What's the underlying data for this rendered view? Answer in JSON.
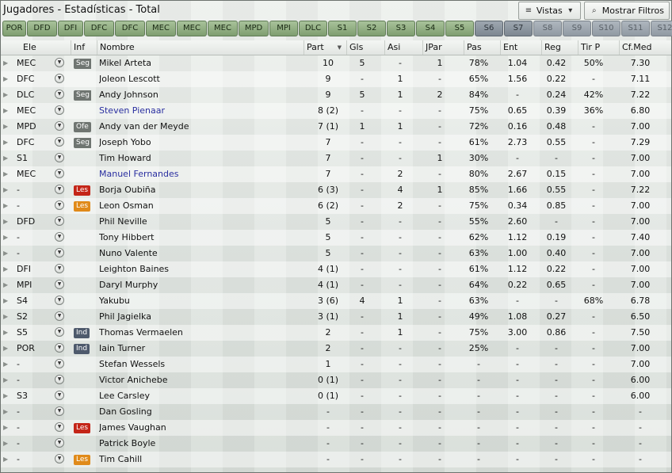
{
  "window": {
    "title": "Jugadores - Estadísticas - Total"
  },
  "toolbar": {
    "views_label": "Vistas",
    "filters_label": "Mostrar Filtros"
  },
  "positions": [
    {
      "label": "POR",
      "state": "on"
    },
    {
      "label": "DFD",
      "state": "on"
    },
    {
      "label": "DFI",
      "state": "on"
    },
    {
      "label": "DFC",
      "state": "on"
    },
    {
      "label": "DFC",
      "state": "on"
    },
    {
      "label": "MEC",
      "state": "on"
    },
    {
      "label": "MEC",
      "state": "on"
    },
    {
      "label": "MEC",
      "state": "on"
    },
    {
      "label": "MPD",
      "state": "on"
    },
    {
      "label": "MPI",
      "state": "on"
    },
    {
      "label": "DLC",
      "state": "on"
    },
    {
      "label": "S1",
      "state": "on"
    },
    {
      "label": "S2",
      "state": "on"
    },
    {
      "label": "S3",
      "state": "on"
    },
    {
      "label": "S4",
      "state": "on"
    },
    {
      "label": "S5",
      "state": "on"
    },
    {
      "label": "S6",
      "state": "dim"
    },
    {
      "label": "S7",
      "state": "dim"
    },
    {
      "label": "S8",
      "state": "dim2"
    },
    {
      "label": "S9",
      "state": "dim2"
    },
    {
      "label": "S10",
      "state": "dim2"
    },
    {
      "label": "S11",
      "state": "dim2"
    },
    {
      "label": "S12",
      "state": "dim2"
    }
  ],
  "columns": {
    "ele": "Ele",
    "inf": "Inf",
    "name": "Nombre",
    "part": "Part",
    "gls": "Gls",
    "asi": "Asi",
    "jpar": "JPar",
    "pas": "Pas",
    "ent": "Ent",
    "reg": "Reg",
    "tir": "Tir P",
    "cf": "Cf.Med"
  },
  "colors": {
    "seg": "#6f7571",
    "ind": "#4e5a6c",
    "les_red": "#c42518",
    "les_orange": "#e08a1a",
    "link_blue": "#2a2fa0"
  },
  "players": [
    {
      "ele": "MEC",
      "inf": "Seg",
      "inf_type": "seg",
      "name": "Mikel Arteta",
      "blue": false,
      "part": "10",
      "gls": "5",
      "asi": "-",
      "jpar": "1",
      "pas": "78%",
      "ent": "1.04",
      "reg": "0.42",
      "tir": "50%",
      "cf": "7.30"
    },
    {
      "ele": "DFC",
      "inf": "",
      "inf_type": "",
      "name": "Joleon Lescott",
      "blue": false,
      "part": "9",
      "gls": "-",
      "asi": "1",
      "jpar": "-",
      "pas": "65%",
      "ent": "1.56",
      "reg": "0.22",
      "tir": "-",
      "cf": "7.11"
    },
    {
      "ele": "DLC",
      "inf": "Seg",
      "inf_type": "seg",
      "name": "Andy Johnson",
      "blue": false,
      "part": "9",
      "gls": "5",
      "asi": "1",
      "jpar": "2",
      "pas": "84%",
      "ent": "-",
      "reg": "0.24",
      "tir": "42%",
      "cf": "7.22"
    },
    {
      "ele": "MEC",
      "inf": "",
      "inf_type": "",
      "name": "Steven Pienaar",
      "blue": true,
      "part": "8 (2)",
      "gls": "-",
      "asi": "-",
      "jpar": "-",
      "pas": "75%",
      "ent": "0.65",
      "reg": "0.39",
      "tir": "36%",
      "cf": "6.80"
    },
    {
      "ele": "MPD",
      "inf": "Ofe",
      "inf_type": "ofe",
      "name": "Andy van der Meyde",
      "blue": false,
      "part": "7 (1)",
      "gls": "1",
      "asi": "1",
      "jpar": "-",
      "pas": "72%",
      "ent": "0.16",
      "reg": "0.48",
      "tir": "-",
      "cf": "7.00"
    },
    {
      "ele": "DFC",
      "inf": "Seg",
      "inf_type": "seg",
      "name": "Joseph Yobo",
      "blue": false,
      "part": "7",
      "gls": "-",
      "asi": "-",
      "jpar": "-",
      "pas": "61%",
      "ent": "2.73",
      "reg": "0.55",
      "tir": "-",
      "cf": "7.29"
    },
    {
      "ele": "S1",
      "inf": "",
      "inf_type": "",
      "name": "Tim Howard",
      "blue": false,
      "part": "7",
      "gls": "-",
      "asi": "-",
      "jpar": "1",
      "pas": "30%",
      "ent": "-",
      "reg": "-",
      "tir": "-",
      "cf": "7.00"
    },
    {
      "ele": "MEC",
      "inf": "",
      "inf_type": "",
      "name": "Manuel Fernandes",
      "blue": true,
      "part": "7",
      "gls": "-",
      "asi": "2",
      "jpar": "-",
      "pas": "80%",
      "ent": "2.67",
      "reg": "0.15",
      "tir": "-",
      "cf": "7.00"
    },
    {
      "ele": "-",
      "inf": "Les",
      "inf_type": "les-red",
      "name": "Borja Oubiña",
      "blue": false,
      "part": "6 (3)",
      "gls": "-",
      "asi": "4",
      "jpar": "1",
      "pas": "85%",
      "ent": "1.66",
      "reg": "0.55",
      "tir": "-",
      "cf": "7.22"
    },
    {
      "ele": "-",
      "inf": "Les",
      "inf_type": "les-orange",
      "name": "Leon Osman",
      "blue": false,
      "part": "6 (2)",
      "gls": "-",
      "asi": "2",
      "jpar": "-",
      "pas": "75%",
      "ent": "0.34",
      "reg": "0.85",
      "tir": "-",
      "cf": "7.00"
    },
    {
      "ele": "DFD",
      "inf": "",
      "inf_type": "",
      "name": "Phil Neville",
      "blue": false,
      "part": "5",
      "gls": "-",
      "asi": "-",
      "jpar": "-",
      "pas": "55%",
      "ent": "2.60",
      "reg": "-",
      "tir": "-",
      "cf": "7.00"
    },
    {
      "ele": "-",
      "inf": "",
      "inf_type": "",
      "name": "Tony Hibbert",
      "blue": false,
      "part": "5",
      "gls": "-",
      "asi": "-",
      "jpar": "-",
      "pas": "62%",
      "ent": "1.12",
      "reg": "0.19",
      "tir": "-",
      "cf": "7.40"
    },
    {
      "ele": "-",
      "inf": "",
      "inf_type": "",
      "name": "Nuno Valente",
      "blue": false,
      "part": "5",
      "gls": "-",
      "asi": "-",
      "jpar": "-",
      "pas": "63%",
      "ent": "1.00",
      "reg": "0.40",
      "tir": "-",
      "cf": "7.00"
    },
    {
      "ele": "DFI",
      "inf": "",
      "inf_type": "",
      "name": "Leighton Baines",
      "blue": false,
      "part": "4 (1)",
      "gls": "-",
      "asi": "-",
      "jpar": "-",
      "pas": "61%",
      "ent": "1.12",
      "reg": "0.22",
      "tir": "-",
      "cf": "7.00"
    },
    {
      "ele": "MPI",
      "inf": "",
      "inf_type": "",
      "name": "Daryl Murphy",
      "blue": false,
      "part": "4 (1)",
      "gls": "-",
      "asi": "-",
      "jpar": "-",
      "pas": "64%",
      "ent": "0.22",
      "reg": "0.65",
      "tir": "-",
      "cf": "7.00"
    },
    {
      "ele": "S4",
      "inf": "",
      "inf_type": "",
      "name": "Yakubu",
      "blue": false,
      "part": "3 (6)",
      "gls": "4",
      "asi": "1",
      "jpar": "-",
      "pas": "63%",
      "ent": "-",
      "reg": "-",
      "tir": "68%",
      "cf": "6.78"
    },
    {
      "ele": "S2",
      "inf": "",
      "inf_type": "",
      "name": "Phil Jagielka",
      "blue": false,
      "part": "3 (1)",
      "gls": "-",
      "asi": "1",
      "jpar": "-",
      "pas": "49%",
      "ent": "1.08",
      "reg": "0.27",
      "tir": "-",
      "cf": "6.50"
    },
    {
      "ele": "S5",
      "inf": "Ind",
      "inf_type": "ind",
      "name": "Thomas Vermaelen",
      "blue": false,
      "part": "2",
      "gls": "-",
      "asi": "1",
      "jpar": "-",
      "pas": "75%",
      "ent": "3.00",
      "reg": "0.86",
      "tir": "-",
      "cf": "7.50"
    },
    {
      "ele": "POR",
      "inf": "Ind",
      "inf_type": "ind",
      "name": "Iain Turner",
      "blue": false,
      "part": "2",
      "gls": "-",
      "asi": "-",
      "jpar": "-",
      "pas": "25%",
      "ent": "-",
      "reg": "-",
      "tir": "-",
      "cf": "7.00"
    },
    {
      "ele": "-",
      "inf": "",
      "inf_type": "",
      "name": "Stefan Wessels",
      "blue": false,
      "part": "1",
      "gls": "-",
      "asi": "-",
      "jpar": "-",
      "pas": "-",
      "ent": "-",
      "reg": "-",
      "tir": "-",
      "cf": "7.00"
    },
    {
      "ele": "-",
      "inf": "",
      "inf_type": "",
      "name": "Victor Anichebe",
      "blue": false,
      "part": "0 (1)",
      "gls": "-",
      "asi": "-",
      "jpar": "-",
      "pas": "-",
      "ent": "-",
      "reg": "-",
      "tir": "-",
      "cf": "6.00"
    },
    {
      "ele": "S3",
      "inf": "",
      "inf_type": "",
      "name": "Lee Carsley",
      "blue": false,
      "part": "0 (1)",
      "gls": "-",
      "asi": "-",
      "jpar": "-",
      "pas": "-",
      "ent": "-",
      "reg": "-",
      "tir": "-",
      "cf": "6.00"
    },
    {
      "ele": "-",
      "inf": "",
      "inf_type": "",
      "name": "Dan Gosling",
      "blue": false,
      "part": "-",
      "gls": "-",
      "asi": "-",
      "jpar": "-",
      "pas": "-",
      "ent": "-",
      "reg": "-",
      "tir": "-",
      "cf": "-"
    },
    {
      "ele": "-",
      "inf": "Les",
      "inf_type": "les-red",
      "name": "James Vaughan",
      "blue": false,
      "part": "-",
      "gls": "-",
      "asi": "-",
      "jpar": "-",
      "pas": "-",
      "ent": "-",
      "reg": "-",
      "tir": "-",
      "cf": "-"
    },
    {
      "ele": "-",
      "inf": "",
      "inf_type": "",
      "name": "Patrick Boyle",
      "blue": false,
      "part": "-",
      "gls": "-",
      "asi": "-",
      "jpar": "-",
      "pas": "-",
      "ent": "-",
      "reg": "-",
      "tir": "-",
      "cf": "-"
    },
    {
      "ele": "-",
      "inf": "Les",
      "inf_type": "les-orange",
      "name": "Tim Cahill",
      "blue": false,
      "part": "-",
      "gls": "-",
      "asi": "-",
      "jpar": "-",
      "pas": "-",
      "ent": "-",
      "reg": "-",
      "tir": "-",
      "cf": "-"
    }
  ]
}
